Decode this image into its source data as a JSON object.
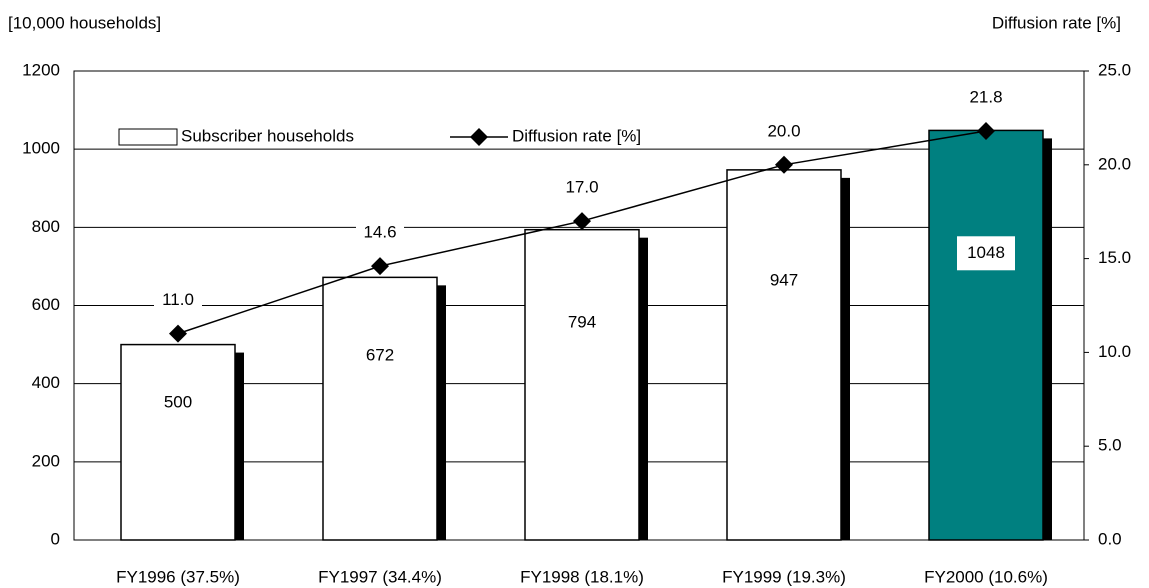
{
  "chart_data": {
    "type": "bar_line",
    "y_label": "[10,000 households]",
    "y2_label": "Diffusion rate [%]",
    "categories": [
      "FY1996 (37.5%)",
      "FY1997 (34.4%)",
      "FY1998 (18.1%)",
      "FY1999 (19.3%)",
      "FY2000 (10.6%)"
    ],
    "series": [
      {
        "name": "Subscriber households",
        "type": "bar",
        "colors": [
          "#ffffff",
          "#ffffff",
          "#ffffff",
          "#ffffff",
          "#008080"
        ],
        "values": [
          500,
          672,
          794,
          947,
          1048
        ]
      },
      {
        "name": "Diffusion rate [%]",
        "type": "line",
        "axis": "y2",
        "color": "#000000",
        "values": [
          11.0,
          14.6,
          17.0,
          20.0,
          21.8
        ],
        "value_labels": [
          "11.0",
          "14.6",
          "17.0",
          "20.0",
          "21.8"
        ]
      }
    ],
    "ylim": [
      0,
      1200
    ],
    "yticks": [
      0,
      200,
      400,
      600,
      800,
      1000,
      1200
    ],
    "y2lim": [
      0,
      25
    ],
    "y2ticks": [
      {
        "value": 0,
        "label": "0.0"
      },
      {
        "value": 5,
        "label": "5.0"
      },
      {
        "value": 10,
        "label": "10.0"
      },
      {
        "value": 15,
        "label": "15.0"
      },
      {
        "value": 20,
        "label": "20.0"
      },
      {
        "value": 25,
        "label": "25.0"
      }
    ],
    "grid": true,
    "legend": "upper left"
  }
}
